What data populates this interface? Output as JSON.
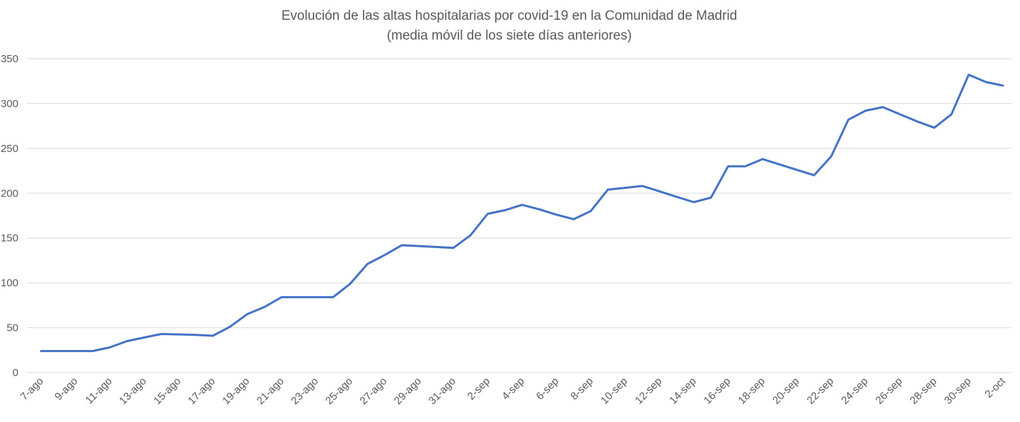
{
  "chart_data": {
    "type": "line",
    "title": "Evolución de las altas hospitalarias por covid-19 en la Comunidad de Madrid",
    "subtitle": "(media móvil de los siete días anteriores)",
    "xlabel": "",
    "ylabel": "",
    "ylim": [
      0,
      350
    ],
    "yticks": [
      0,
      50,
      100,
      150,
      200,
      250,
      300,
      350
    ],
    "grid": true,
    "legend": "none",
    "line_color": "#4472C4",
    "x": [
      "7-ago",
      "8-ago",
      "9-ago",
      "10-ago",
      "11-ago",
      "12-ago",
      "13-ago",
      "14-ago",
      "15-ago",
      "16-ago",
      "17-ago",
      "18-ago",
      "19-ago",
      "20-ago",
      "21-ago",
      "22-ago",
      "23-ago",
      "24-ago",
      "25-ago",
      "26-ago",
      "27-ago",
      "28-ago",
      "29-ago",
      "30-ago",
      "31-ago",
      "1-sep",
      "2-sep",
      "3-sep",
      "4-sep",
      "5-sep",
      "6-sep",
      "7-sep",
      "8-sep",
      "9-sep",
      "10-sep",
      "11-sep",
      "12-sep",
      "13-sep",
      "14-sep",
      "15-sep",
      "16-sep",
      "17-sep",
      "18-sep",
      "19-sep",
      "20-sep",
      "21-sep",
      "22-sep",
      "23-sep",
      "24-sep",
      "25-sep",
      "26-sep",
      "27-sep",
      "28-sep",
      "29-sep",
      "30-sep",
      "1-oct",
      "2-oct"
    ],
    "xtick_labels": [
      "7-ago",
      "9-ago",
      "11-ago",
      "13-ago",
      "15-ago",
      "17-ago",
      "19-ago",
      "21-ago",
      "23-ago",
      "25-ago",
      "27-ago",
      "29-ago",
      "31-ago",
      "2-sep",
      "4-sep",
      "6-sep",
      "8-sep",
      "10-sep",
      "12-sep",
      "14-sep",
      "16-sep",
      "18-sep",
      "20-sep",
      "22-sep",
      "24-sep",
      "26-sep",
      "28-sep",
      "30-sep",
      "2-oct"
    ],
    "values": [
      24,
      24,
      24,
      24,
      28,
      35,
      39,
      43,
      42.5,
      42,
      41,
      51,
      65,
      73,
      84,
      84,
      84,
      84,
      99,
      121,
      131,
      142,
      141,
      140,
      139,
      153,
      177,
      181,
      187,
      182,
      176,
      171,
      180,
      204,
      206,
      208,
      202,
      196,
      190,
      195,
      230,
      230,
      238,
      232,
      226,
      220,
      241,
      282,
      292,
      296,
      288,
      280,
      273,
      288,
      332,
      324,
      320
    ]
  }
}
